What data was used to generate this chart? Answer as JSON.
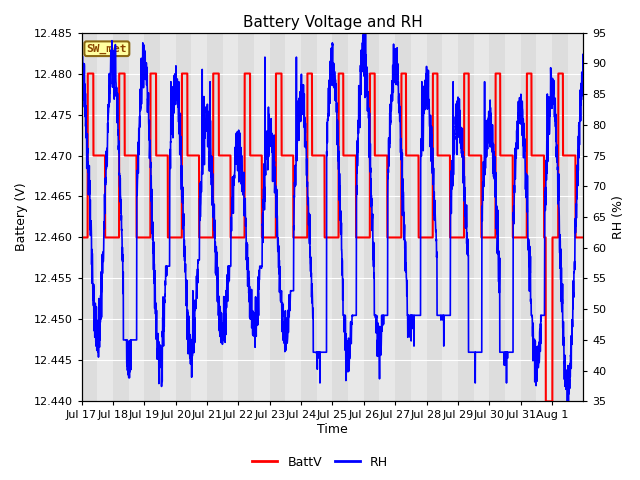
{
  "title": "Battery Voltage and RH",
  "xlabel": "Time",
  "ylabel_left": "Battery (V)",
  "ylabel_right": "RH (%)",
  "station_label": "SW_met",
  "ylim_left": [
    12.44,
    12.485
  ],
  "ylim_right": [
    35,
    95
  ],
  "yticks_left": [
    12.44,
    12.445,
    12.45,
    12.455,
    12.46,
    12.465,
    12.47,
    12.475,
    12.48,
    12.485
  ],
  "yticks_right": [
    35,
    40,
    45,
    50,
    55,
    60,
    65,
    70,
    75,
    80,
    85,
    90,
    95
  ],
  "xtick_labels": [
    "Jul 17",
    "Jul 18",
    "Jul 19",
    "Jul 20",
    "Jul 21",
    "Jul 22",
    "Jul 23",
    "Jul 24",
    "Jul 25",
    "Jul 26",
    "Jul 27",
    "Jul 28",
    "Jul 29",
    "Jul 30",
    "Jul 31",
    "Aug 1"
  ],
  "batt_color": "#ff0000",
  "rh_color": "#0000ff",
  "fig_bg_color": "#ffffff",
  "plot_bg_color": "#e8e8e8",
  "stripe_color": "#d3d3d3",
  "title_fontsize": 11,
  "legend_fontsize": 9,
  "tick_fontsize": 8,
  "label_fontsize": 9,
  "n_days": 16,
  "batt_linewidth": 1.5,
  "rh_linewidth": 1.2
}
